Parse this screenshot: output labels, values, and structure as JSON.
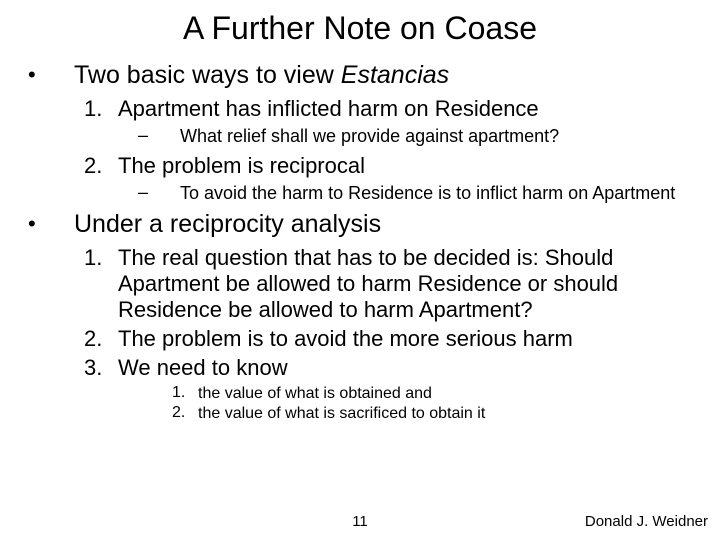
{
  "title": "A Further Note on Coase",
  "bullets": [
    {
      "text_pre": "Two basic ways to view ",
      "text_italic": "Estancias",
      "items": [
        {
          "num": "1.",
          "text": "Apartment has inflicted harm on Residence",
          "subs": [
            {
              "dash": "–",
              "text": "What relief shall we provide against apartment?"
            }
          ]
        },
        {
          "num": "2.",
          "text": "The problem is reciprocal",
          "subs": [
            {
              "dash": "–",
              "text": "To avoid the harm to Residence is to inflict harm on Apartment"
            }
          ]
        }
      ]
    },
    {
      "text_pre": "Under a reciprocity analysis",
      "text_italic": "",
      "items": [
        {
          "num": "1.",
          "text": "The real question that has to be decided is: Should Apartment be allowed to harm Residence or should Residence be allowed to harm Apartment?",
          "subs": []
        },
        {
          "num": "2.",
          "text": "The problem is to avoid the more serious harm",
          "subs": []
        },
        {
          "num": "3.",
          "text": "We need to know",
          "subs": [],
          "subitems": [
            {
              "num": "1.",
              "text": "the value of what is obtained and"
            },
            {
              "num": "2.",
              "text": "the value of what is sacrificed to obtain it"
            }
          ]
        }
      ]
    }
  ],
  "page_number": "11",
  "author": "Donald J. Weidner",
  "colors": {
    "background": "#ffffff",
    "text": "#000000"
  },
  "fonts": {
    "title_size": 32,
    "lvl1_size": 25,
    "lvl2_size": 22,
    "lvl3_size": 18,
    "lvl4_size": 16,
    "footer_size": 15
  }
}
